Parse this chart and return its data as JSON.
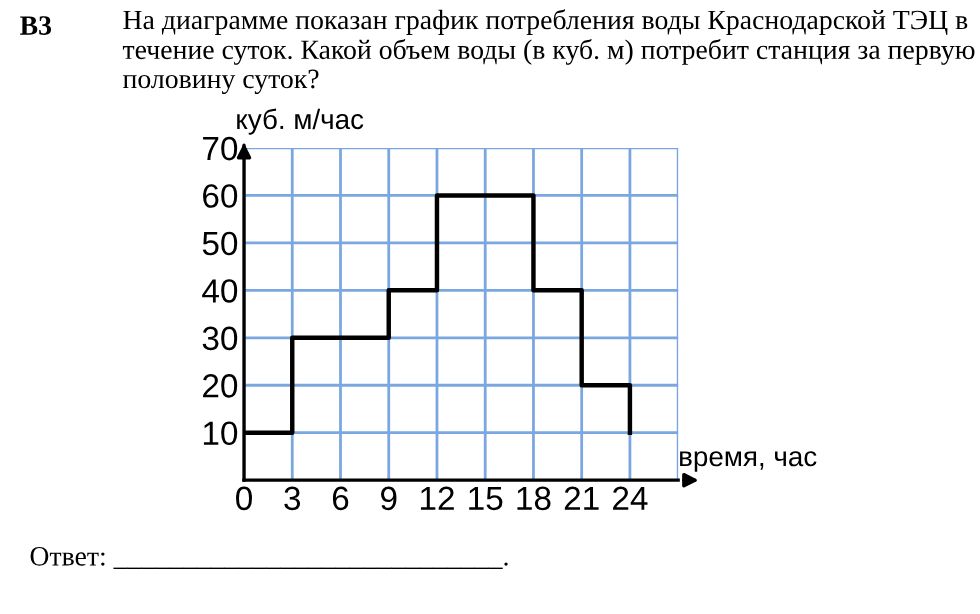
{
  "chart_data": {
    "type": "step",
    "title": "На диаграмме показан график потребления воды Краснодарской ТЭЦ в течение суток. Какой объем воды (в куб. м) потребит станция за первую половину суток?",
    "annotations": [
      "B3",
      "Ответ: ____________________________."
    ],
    "xlabel": "время, час",
    "ylabel": "куб. м/час",
    "x": [
      0,
      3,
      9,
      12,
      18,
      21,
      24
    ],
    "series": [
      {
        "color": "#000000",
        "values": [
          10,
          30,
          40,
          60,
          40,
          20,
          10
        ]
      }
    ],
    "xlim": [
      0,
      27
    ],
    "ylim": [
      0,
      70
    ],
    "xticks": [
      0,
      3,
      6,
      9,
      12,
      15,
      18,
      21,
      24,
      {
        "value": 27,
        "label": null
      }
    ],
    "yticks": [
      10,
      20,
      30,
      40,
      50,
      60,
      70
    ],
    "grid": true,
    "line_style": "solid",
    "marker": "none"
  }
}
